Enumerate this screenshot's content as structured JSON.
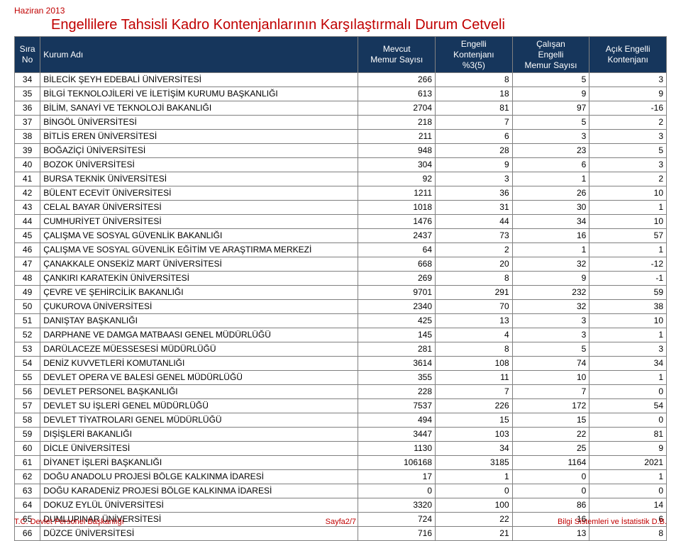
{
  "date_label": "Haziran 2013",
  "page_title": "Engellilere Tahsisli Kadro Kontenjanlarının Karşılaştırmalı Durum Cetveli",
  "columns": {
    "sira": "Sıra\nNo",
    "kurum": "Kurum Adı",
    "mevcut": "Mevcut\nMemur Sayısı",
    "kontenjan": "Engelli\nKontenjanı\n%3(5)",
    "calisan": "Çalışan\nEngelli\nMemur Sayısı",
    "acik": "Açık Engelli\nKontenjanı"
  },
  "colors": {
    "header_bg": "#16365c",
    "header_fg": "#ffffff",
    "accent": "#c00000",
    "grid": "#808080",
    "body_bg": "#ffffff"
  },
  "rows": [
    {
      "n": "34",
      "k": "BİLECİK ŞEYH EDEBALİ ÜNİVERSİTESİ",
      "a": "266",
      "b": "8",
      "c": "5",
      "d": "3"
    },
    {
      "n": "35",
      "k": "BİLGİ TEKNOLOJİLERİ VE İLETİŞİM KURUMU BAŞKANLIĞI",
      "a": "613",
      "b": "18",
      "c": "9",
      "d": "9"
    },
    {
      "n": "36",
      "k": "BİLİM, SANAYİ VE TEKNOLOJİ BAKANLIĞI",
      "a": "2704",
      "b": "81",
      "c": "97",
      "d": "-16"
    },
    {
      "n": "37",
      "k": "BİNGÖL ÜNİVERSİTESİ",
      "a": "218",
      "b": "7",
      "c": "5",
      "d": "2"
    },
    {
      "n": "38",
      "k": "BİTLİS EREN ÜNİVERSİTESİ",
      "a": "211",
      "b": "6",
      "c": "3",
      "d": "3"
    },
    {
      "n": "39",
      "k": "BOĞAZİÇİ ÜNİVERSİTESİ",
      "a": "948",
      "b": "28",
      "c": "23",
      "d": "5"
    },
    {
      "n": "40",
      "k": "BOZOK ÜNİVERSİTESİ",
      "a": "304",
      "b": "9",
      "c": "6",
      "d": "3"
    },
    {
      "n": "41",
      "k": "BURSA TEKNİK ÜNİVERSİTESİ",
      "a": "92",
      "b": "3",
      "c": "1",
      "d": "2"
    },
    {
      "n": "42",
      "k": "BÜLENT ECEVİT ÜNİVERSİTESİ",
      "a": "1211",
      "b": "36",
      "c": "26",
      "d": "10"
    },
    {
      "n": "43",
      "k": "CELAL BAYAR ÜNİVERSİTESİ",
      "a": "1018",
      "b": "31",
      "c": "30",
      "d": "1"
    },
    {
      "n": "44",
      "k": "CUMHURİYET ÜNİVERSİTESİ",
      "a": "1476",
      "b": "44",
      "c": "34",
      "d": "10"
    },
    {
      "n": "45",
      "k": "ÇALIŞMA VE SOSYAL GÜVENLİK BAKANLIĞI",
      "a": "2437",
      "b": "73",
      "c": "16",
      "d": "57"
    },
    {
      "n": "46",
      "k": "ÇALIŞMA VE SOSYAL GÜVENLİK EĞİTİM VE ARAŞTIRMA MERKEZİ",
      "a": "64",
      "b": "2",
      "c": "1",
      "d": "1"
    },
    {
      "n": "47",
      "k": "ÇANAKKALE ONSEKİZ MART ÜNİVERSİTESİ",
      "a": "668",
      "b": "20",
      "c": "32",
      "d": "-12"
    },
    {
      "n": "48",
      "k": "ÇANKIRI KARATEKİN ÜNİVERSİTESİ",
      "a": "269",
      "b": "8",
      "c": "9",
      "d": "-1"
    },
    {
      "n": "49",
      "k": "ÇEVRE VE ŞEHİRCİLİK BAKANLIĞI",
      "a": "9701",
      "b": "291",
      "c": "232",
      "d": "59"
    },
    {
      "n": "50",
      "k": "ÇUKUROVA ÜNİVERSİTESİ",
      "a": "2340",
      "b": "70",
      "c": "32",
      "d": "38"
    },
    {
      "n": "51",
      "k": "DANIŞTAY BAŞKANLIĞI",
      "a": "425",
      "b": "13",
      "c": "3",
      "d": "10"
    },
    {
      "n": "52",
      "k": "DARPHANE VE DAMGA MATBAASI GENEL MÜDÜRLÜĞÜ",
      "a": "145",
      "b": "4",
      "c": "3",
      "d": "1"
    },
    {
      "n": "53",
      "k": "DARÜLACEZE MÜESSESESİ MÜDÜRLÜĞÜ",
      "a": "281",
      "b": "8",
      "c": "5",
      "d": "3"
    },
    {
      "n": "54",
      "k": "DENİZ KUVVETLERİ KOMUTANLIĞI",
      "a": "3614",
      "b": "108",
      "c": "74",
      "d": "34"
    },
    {
      "n": "55",
      "k": "DEVLET OPERA VE BALESİ GENEL MÜDÜRLÜĞÜ",
      "a": "355",
      "b": "11",
      "c": "10",
      "d": "1"
    },
    {
      "n": "56",
      "k": "DEVLET PERSONEL BAŞKANLIĞI",
      "a": "228",
      "b": "7",
      "c": "7",
      "d": "0"
    },
    {
      "n": "57",
      "k": "DEVLET SU İŞLERİ GENEL MÜDÜRLÜĞÜ",
      "a": "7537",
      "b": "226",
      "c": "172",
      "d": "54"
    },
    {
      "n": "58",
      "k": "DEVLET TİYATROLARI GENEL MÜDÜRLÜĞÜ",
      "a": "494",
      "b": "15",
      "c": "15",
      "d": "0"
    },
    {
      "n": "59",
      "k": "DIŞİŞLERİ BAKANLIĞI",
      "a": "3447",
      "b": "103",
      "c": "22",
      "d": "81"
    },
    {
      "n": "60",
      "k": "DİCLE ÜNİVERSİTESİ",
      "a": "1130",
      "b": "34",
      "c": "25",
      "d": "9"
    },
    {
      "n": "61",
      "k": "DİYANET İŞLERİ BAŞKANLIĞI",
      "a": "106168",
      "b": "3185",
      "c": "1164",
      "d": "2021"
    },
    {
      "n": "62",
      "k": "DOĞU ANADOLU PROJESİ BÖLGE KALKINMA İDARESİ",
      "a": "17",
      "b": "1",
      "c": "0",
      "d": "1"
    },
    {
      "n": "63",
      "k": "DOĞU KARADENİZ PROJESİ BÖLGE KALKINMA İDARESİ",
      "a": "0",
      "b": "0",
      "c": "0",
      "d": "0"
    },
    {
      "n": "64",
      "k": "DOKUZ EYLÜL ÜNİVERSİTESİ",
      "a": "3320",
      "b": "100",
      "c": "86",
      "d": "14"
    },
    {
      "n": "65",
      "k": "DUMLUPINAR ÜNİVERSİTESİ",
      "a": "724",
      "b": "22",
      "c": "16",
      "d": "6"
    },
    {
      "n": "66",
      "k": "DÜZCE ÜNİVERSİTESİ",
      "a": "716",
      "b": "21",
      "c": "13",
      "d": "8"
    }
  ],
  "footer": {
    "left": "T.C. Devlet Personel Başkanlığı",
    "center": "Sayfa2/7",
    "right": "Bilgi Sistemleri ve İstatistik D.B."
  }
}
